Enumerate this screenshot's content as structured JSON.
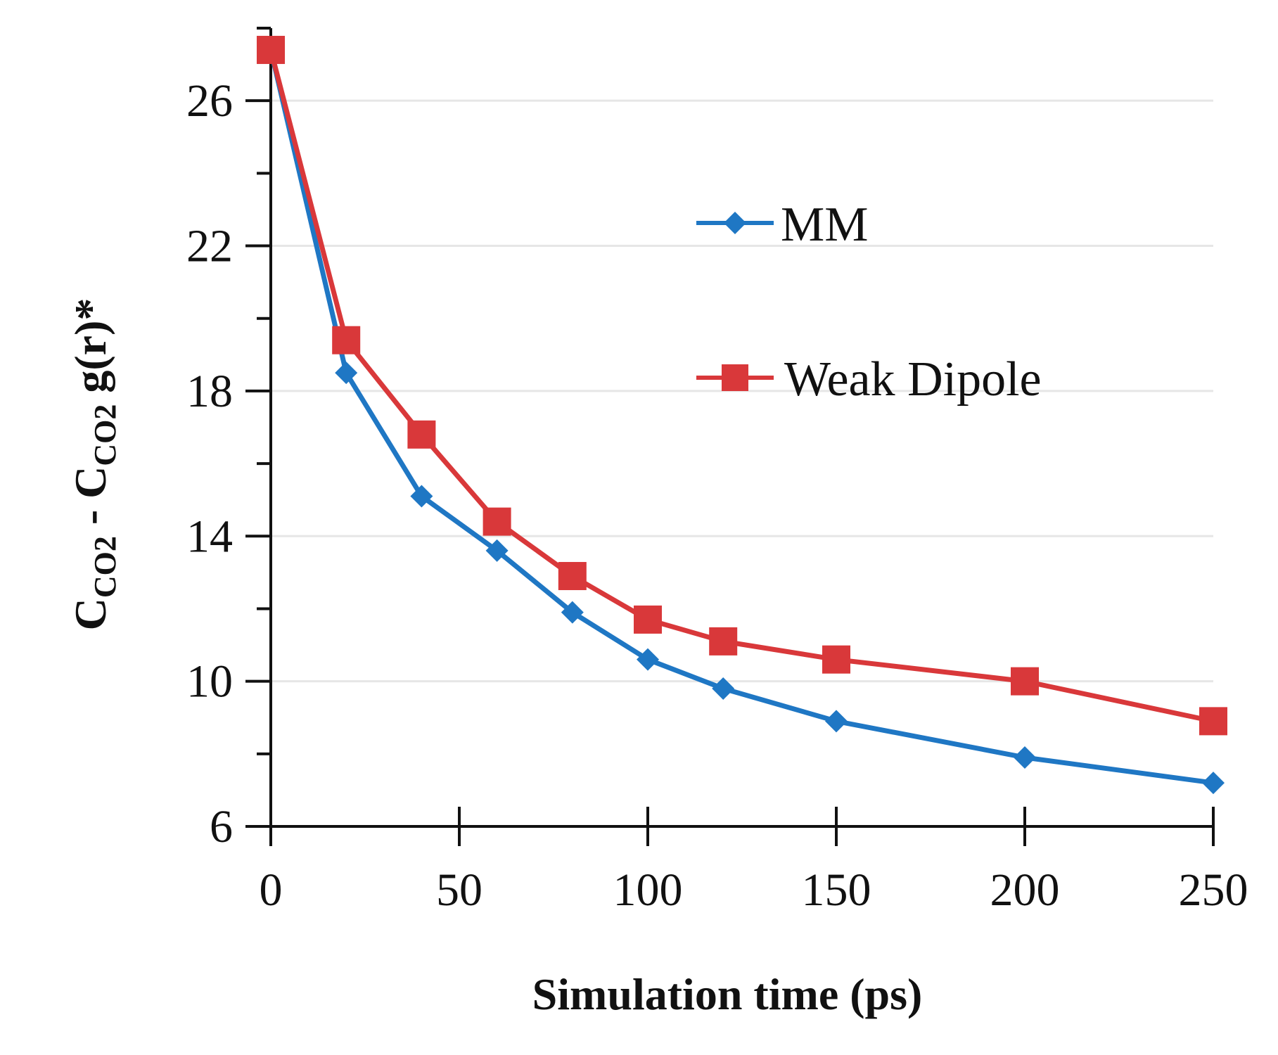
{
  "chart_data": {
    "type": "line",
    "title": "",
    "xlabel": "Simulation time (ps)",
    "ylabel": {
      "parts": [
        {
          "text": "C",
          "sub": false
        },
        {
          "text": "CO2",
          "sub": true
        },
        {
          "text": " - C",
          "sub": false
        },
        {
          "text": "CO2",
          "sub": true
        },
        {
          "text": " g(r)*",
          "sub": false
        }
      ]
    },
    "xlim": [
      0,
      250
    ],
    "ylim": [
      6,
      28
    ],
    "x_ticks": [
      0,
      50,
      100,
      150,
      200,
      250
    ],
    "y_ticks": [
      6,
      10,
      14,
      18,
      22,
      26
    ],
    "y_minor_ticks": [
      8,
      12,
      16,
      20,
      24,
      28
    ],
    "grid": "horizontal",
    "legend_position": "right-middle",
    "series": [
      {
        "name": "MM",
        "color": "#1f77c4",
        "marker": "diamond",
        "x": [
          0,
          20,
          40,
          60,
          80,
          100,
          120,
          150,
          200,
          250
        ],
        "y": [
          27.4,
          18.5,
          15.1,
          13.6,
          11.9,
          10.6,
          9.8,
          8.9,
          7.9,
          7.2
        ]
      },
      {
        "name": "Weak Dipole",
        "color": "#d9383a",
        "marker": "square",
        "x": [
          0,
          20,
          40,
          60,
          80,
          100,
          120,
          150,
          200,
          250
        ],
        "y": [
          27.4,
          19.4,
          16.8,
          14.4,
          12.9,
          11.7,
          11.1,
          10.6,
          10.0,
          8.9
        ]
      }
    ]
  }
}
